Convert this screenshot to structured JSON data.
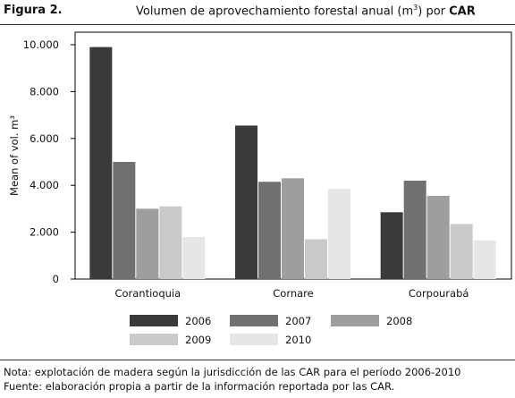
{
  "figure": {
    "label": "Figura 2.",
    "title_main": "Volumen de aprovechamiento forestal anual (m",
    "title_sup": "3",
    "title_mid": ") por ",
    "title_bold": "CAR"
  },
  "chart_data": {
    "type": "bar",
    "title": "Volumen de aprovechamiento forestal anual (m³) por CAR",
    "ylabel": "Mean of vol. m³",
    "xlabel": "",
    "categories": [
      "Corantioquia",
      "Cornare",
      "Corpourabá"
    ],
    "ylim": [
      0,
      10000
    ],
    "yticks": [
      0,
      2000,
      4000,
      6000,
      8000,
      10000
    ],
    "ytick_labels": [
      "0",
      "2.000",
      "4.000",
      "6.000",
      "8.000",
      "10.000"
    ],
    "series": [
      {
        "name": "2006",
        "color": "#3a3a3a",
        "values": [
          9900,
          6550,
          2850
        ]
      },
      {
        "name": "2007",
        "color": "#707070",
        "values": [
          5000,
          4150,
          4200
        ]
      },
      {
        "name": "2008",
        "color": "#9e9e9e",
        "values": [
          3000,
          4300,
          3550
        ]
      },
      {
        "name": "2009",
        "color": "#c9c9c9",
        "values": [
          3100,
          1700,
          2350
        ]
      },
      {
        "name": "2010",
        "color": "#e6e6e6",
        "values": [
          1800,
          3850,
          1650
        ]
      }
    ],
    "grid": false,
    "legend_position": "bottom"
  },
  "notes": {
    "nota": "Nota: explotación de madera según la jurisdicción de las CAR para el período 2006-2010",
    "fuente": "Fuente: elaboración propia a partir de la información reportada por las CAR."
  }
}
